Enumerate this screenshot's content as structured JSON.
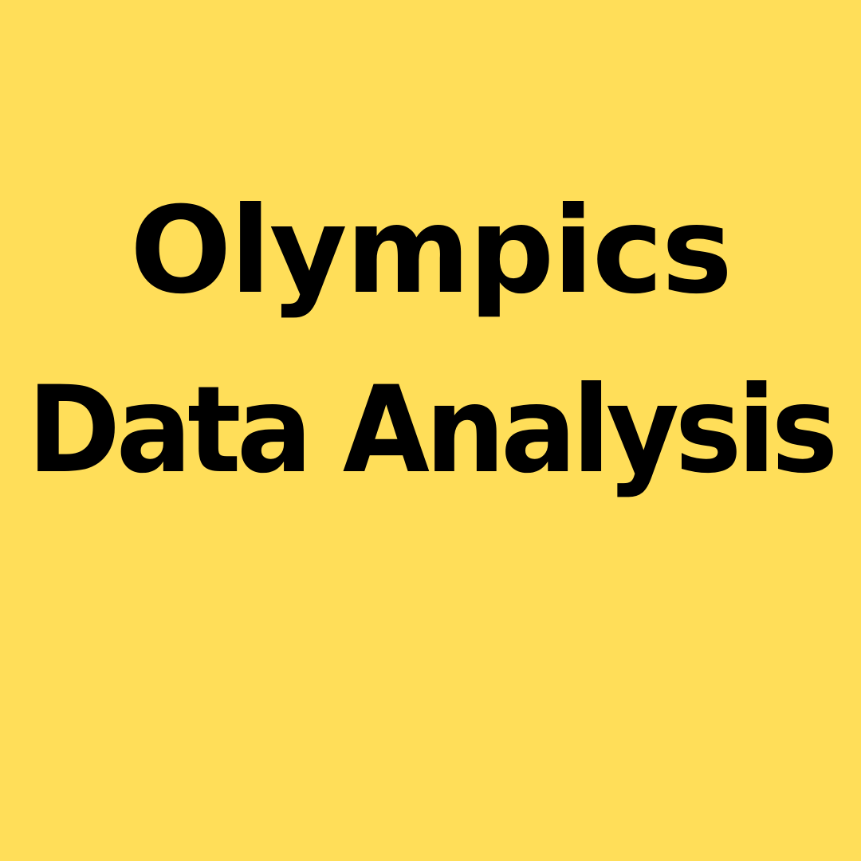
{
  "title": {
    "line1": "Olympics",
    "line2": "Data Analysis"
  },
  "colors": {
    "background": "#FFDE59",
    "text": "#000000"
  }
}
